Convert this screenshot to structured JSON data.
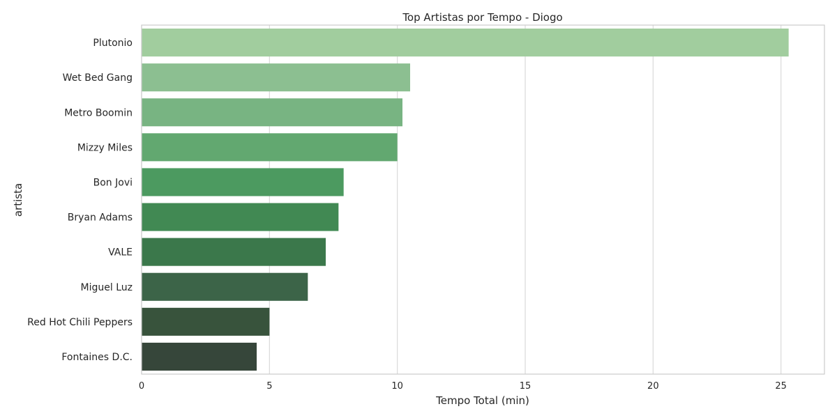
{
  "chart_data": {
    "type": "bar",
    "orientation": "horizontal",
    "title": "Top Artistas por Tempo - Diogo",
    "xlabel": "Tempo Total (min)",
    "ylabel": "artista",
    "xlim": [
      0,
      26.7
    ],
    "xticks": [
      0,
      5,
      10,
      15,
      20,
      25
    ],
    "grid": true,
    "categories": [
      "Plutonio",
      "Wet Bed Gang",
      "Metro Boomin",
      "Mizzy Miles",
      "Bon Jovi",
      "Bryan Adams",
      "VALE",
      "Miguel Luz",
      "Red Hot Chili Peppers",
      "Fontaines D.C."
    ],
    "values": [
      25.3,
      10.5,
      10.2,
      10.0,
      7.9,
      7.7,
      7.2,
      6.5,
      5.0,
      4.5
    ],
    "colors": [
      "#a1cd9e",
      "#8cbf91",
      "#78b482",
      "#62a870",
      "#4c9a60",
      "#418953",
      "#3b784b",
      "#3c6448",
      "#38533c",
      "#36463a"
    ]
  }
}
